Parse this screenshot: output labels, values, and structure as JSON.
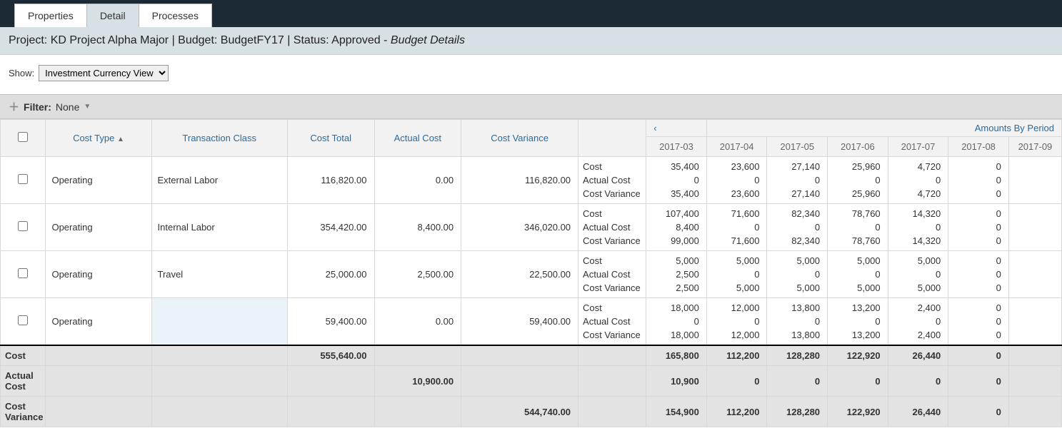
{
  "tabs": {
    "properties": "Properties",
    "detail": "Detail",
    "processes": "Processes"
  },
  "subheader": {
    "prefix_project": "Project:",
    "project": "KD Project Alpha Major",
    "prefix_budget": "Budget:",
    "budget": "BudgetFY17",
    "prefix_status": "Status:",
    "status": "Approved",
    "suffix": "Budget Details"
  },
  "show": {
    "label": "Show:",
    "selected": "Investment Currency View"
  },
  "filter": {
    "label": "Filter:",
    "value": "None"
  },
  "columns": {
    "cost_type": "Cost Type",
    "txn_class": "Transaction Class",
    "cost_total": "Cost Total",
    "actual_cost": "Actual Cost",
    "cost_variance": "Cost Variance",
    "amounts_by_period": "Amounts By Period"
  },
  "periods": [
    "2017-03",
    "2017-04",
    "2017-05",
    "2017-06",
    "2017-07",
    "2017-08",
    "2017-09"
  ],
  "metric_labels": {
    "cost": "Cost",
    "actual": "Actual Cost",
    "variance": "Cost Variance"
  },
  "rows": [
    {
      "cost_type": "Operating",
      "txn_class": "External Labor",
      "cost_total": "116,820.00",
      "actual_cost": "0.00",
      "cost_variance": "116,820.00",
      "cost": [
        "35,400",
        "23,600",
        "27,140",
        "25,960",
        "4,720",
        "0",
        ""
      ],
      "actual": [
        "0",
        "0",
        "0",
        "0",
        "0",
        "0",
        ""
      ],
      "variance": [
        "35,400",
        "23,600",
        "27,140",
        "25,960",
        "4,720",
        "0",
        ""
      ]
    },
    {
      "cost_type": "Operating",
      "txn_class": "Internal Labor",
      "cost_total": "354,420.00",
      "actual_cost": "8,400.00",
      "cost_variance": "346,020.00",
      "cost": [
        "107,400",
        "71,600",
        "82,340",
        "78,760",
        "14,320",
        "0",
        ""
      ],
      "actual": [
        "8,400",
        "0",
        "0",
        "0",
        "0",
        "0",
        ""
      ],
      "variance": [
        "99,000",
        "71,600",
        "82,340",
        "78,760",
        "14,320",
        "0",
        ""
      ]
    },
    {
      "cost_type": "Operating",
      "txn_class": "Travel",
      "cost_total": "25,000.00",
      "actual_cost": "2,500.00",
      "cost_variance": "22,500.00",
      "cost": [
        "5,000",
        "5,000",
        "5,000",
        "5,000",
        "5,000",
        "0",
        ""
      ],
      "actual": [
        "2,500",
        "0",
        "0",
        "0",
        "0",
        "0",
        ""
      ],
      "variance": [
        "2,500",
        "5,000",
        "5,000",
        "5,000",
        "5,000",
        "0",
        ""
      ]
    },
    {
      "cost_type": "Operating",
      "txn_class": "",
      "cost_total": "59,400.00",
      "actual_cost": "0.00",
      "cost_variance": "59,400.00",
      "cost": [
        "18,000",
        "12,000",
        "13,800",
        "13,200",
        "2,400",
        "0",
        ""
      ],
      "actual": [
        "0",
        "0",
        "0",
        "0",
        "0",
        "0",
        ""
      ],
      "variance": [
        "18,000",
        "12,000",
        "13,800",
        "13,200",
        "2,400",
        "0",
        ""
      ]
    }
  ],
  "totals": {
    "cost": {
      "label": "Cost",
      "total": "555,640.00",
      "periods": [
        "165,800",
        "112,200",
        "128,280",
        "122,920",
        "26,440",
        "0",
        ""
      ]
    },
    "actual": {
      "label": "Actual Cost",
      "total": "10,900.00",
      "periods": [
        "10,900",
        "0",
        "0",
        "0",
        "0",
        "0",
        ""
      ]
    },
    "variance": {
      "label": "Cost Variance",
      "total": "544,740.00",
      "periods": [
        "154,900",
        "112,200",
        "128,280",
        "122,920",
        "26,440",
        "0",
        ""
      ]
    }
  }
}
